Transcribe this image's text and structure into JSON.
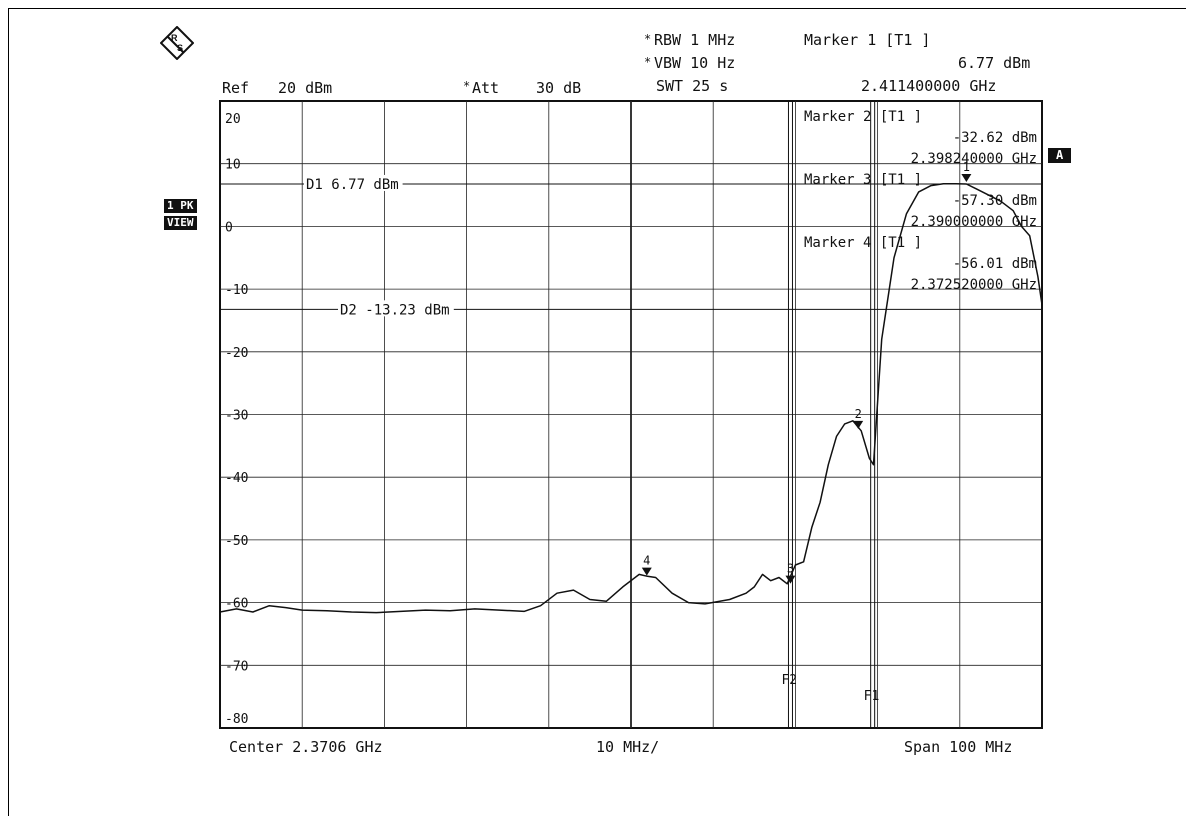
{
  "header": {
    "ref_label": "Ref",
    "ref_value": "20 dBm",
    "att_star": "*",
    "att_label": "Att",
    "att_value": "30 dB",
    "rbw_star": "*",
    "rbw": "RBW 1 MHz",
    "vbw_star": "*",
    "vbw": "VBW 10 Hz",
    "swt": "SWT 25 s",
    "marker1_title": "Marker 1 [T1 ]",
    "marker1_level": "6.77 dBm",
    "marker1_freq": "2.411400000 GHz"
  },
  "side_labels": {
    "trace_mode": "1 PK",
    "view": "VIEW",
    "trace_a": "A"
  },
  "footer": {
    "center": "Center 2.3706 GHz",
    "div": "10 MHz/",
    "span": "Span 100 MHz"
  },
  "markers_table": [
    {
      "title": "Marker 2 [T1 ]",
      "level": "-32.62 dBm",
      "freq": "2.398240000 GHz"
    },
    {
      "title": "Marker 3 [T1 ]",
      "level": "-57.30 dBm",
      "freq": "2.390000000 GHz"
    },
    {
      "title": "Marker 4 [T1 ]",
      "level": "-56.01 dBm",
      "freq": "2.372520000 GHz"
    }
  ],
  "chart_data": {
    "type": "line",
    "title": "",
    "xlabel": "",
    "ylabel": "",
    "x_unit": "GHz",
    "xlim": [
      2.3206,
      2.4206
    ],
    "ylim": [
      -80,
      20
    ],
    "y_ticks": [
      20,
      10,
      0,
      -10,
      -20,
      -30,
      -40,
      -50,
      -60,
      -70,
      -80
    ],
    "y_tick_labels": [
      "20",
      "10",
      "0",
      "-10",
      "-20",
      "-30",
      "-40",
      "-50",
      "-60",
      "-70",
      "-80"
    ],
    "grid": true,
    "display_lines": [
      {
        "label": "D1 6.77 dBm",
        "level": 6.77
      },
      {
        "label": "D2 -13.23 dBm",
        "level": -13.23
      }
    ],
    "frequency_lines": [
      {
        "label": "F2",
        "freq": 2.39
      },
      {
        "label": "F1",
        "freq": 2.4
      }
    ],
    "markers": [
      {
        "label": "1",
        "freq": 2.4114,
        "level": 6.77
      },
      {
        "label": "2",
        "freq": 2.39824,
        "level": -32.62
      },
      {
        "label": "3",
        "freq": 2.39,
        "level": -57.3
      },
      {
        "label": "4",
        "freq": 2.37252,
        "level": -56.01
      }
    ],
    "series": [
      {
        "x": [
          2.3206,
          2.3226,
          2.3246,
          2.3266,
          2.3286,
          2.3306,
          2.3336,
          2.3366,
          2.3396,
          2.3426,
          2.3456,
          2.3486,
          2.3516,
          2.3546,
          2.3576,
          2.3596,
          2.3616,
          2.3636,
          2.3656,
          2.3676,
          2.3696,
          2.3716,
          2.3726,
          2.3736,
          2.3756,
          2.3776,
          2.3796,
          2.3826,
          2.3846,
          2.3856,
          2.3866,
          2.3876,
          2.3886,
          2.3896,
          2.3906,
          2.3916,
          2.3926,
          2.3936,
          2.3946,
          2.3956,
          2.3966,
          2.3976,
          2.3986,
          2.3996,
          2.4001,
          2.4011,
          2.4026,
          2.4041,
          2.4056,
          2.4071,
          2.4086,
          2.4101,
          2.4114,
          2.4126,
          2.4141,
          2.4156,
          2.4171,
          2.4181,
          2.4191,
          2.4201,
          2.4206
        ],
        "y": [
          -61.5,
          -61.0,
          -61.5,
          -60.5,
          -60.8,
          -61.2,
          -61.3,
          -61.5,
          -61.6,
          -61.4,
          -61.2,
          -61.3,
          -61.0,
          -61.2,
          -61.4,
          -60.5,
          -58.5,
          -58.0,
          -59.5,
          -59.8,
          -57.5,
          -55.5,
          -55.8,
          -56.0,
          -58.5,
          -60.0,
          -60.2,
          -59.5,
          -58.5,
          -57.5,
          -55.5,
          -56.5,
          -56.0,
          -57.0,
          -54.0,
          -53.5,
          -48.0,
          -44.0,
          -38.0,
          -33.5,
          -31.5,
          -31.0,
          -32.6,
          -37.0,
          -38.0,
          -18.0,
          -5.0,
          2.0,
          5.5,
          6.5,
          6.8,
          6.8,
          6.77,
          6.0,
          5.0,
          4.0,
          2.5,
          0.0,
          -1.5,
          -8.0,
          -12.5
        ]
      }
    ]
  }
}
